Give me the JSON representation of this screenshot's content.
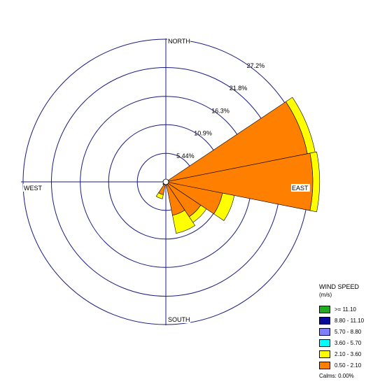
{
  "chart_data": {
    "type": "windrose",
    "directions": [
      {
        "label": "NORTH",
        "angle": 0
      },
      {
        "label": "EAST",
        "angle": 90
      },
      {
        "label": "SOUTH",
        "angle": 180
      },
      {
        "label": "WEST",
        "angle": 270
      }
    ],
    "rings": [
      "5.44%",
      "10.9%",
      "16.3%",
      "21.8%",
      "27.2%"
    ],
    "ring_values": [
      5.44,
      10.9,
      16.3,
      21.8,
      27.2
    ],
    "legend": {
      "title": "WIND SPEED",
      "unit": "(m/s)",
      "bins": [
        {
          "label": ">= 11.10",
          "color": "#22aa22"
        },
        {
          "label": "8.80 - 11.10",
          "color": "#0a0a99"
        },
        {
          "label": "5.70 - 8.80",
          "color": "#8080ff"
        },
        {
          "label": "3.60 - 5.70",
          "color": "#00ffff"
        },
        {
          "label": "2.10 - 3.60",
          "color": "#ffff00"
        },
        {
          "label": "0.50 - 2.10",
          "color": "#ff8000"
        }
      ],
      "calms": "Calms: 0.00%"
    },
    "sectors": [
      {
        "angle": 0,
        "values": [
          0.1,
          0
        ]
      },
      {
        "angle": 22.5,
        "values": [
          0.3,
          0
        ]
      },
      {
        "angle": 45,
        "values": [
          0.5,
          0
        ]
      },
      {
        "angle": 67.5,
        "values": [
          27.5,
          1.5
        ]
      },
      {
        "angle": 90,
        "values": [
          28.0,
          1.3
        ]
      },
      {
        "angle": 112.5,
        "values": [
          11.0,
          2.3
        ]
      },
      {
        "angle": 135,
        "values": [
          8.0,
          1.3
        ]
      },
      {
        "angle": 157.5,
        "values": [
          6.5,
          3.5
        ]
      },
      {
        "angle": 180,
        "values": [
          0.3,
          0
        ]
      },
      {
        "angle": 202.5,
        "values": [
          2.5,
          0.8
        ]
      },
      {
        "angle": 225,
        "values": [
          0.6,
          0.1
        ]
      },
      {
        "angle": 247.5,
        "values": [
          0.3,
          0
        ]
      },
      {
        "angle": 270,
        "values": [
          0.2,
          0
        ]
      },
      {
        "angle": 292.5,
        "values": [
          0.2,
          0
        ]
      },
      {
        "angle": 315,
        "values": [
          0.2,
          0
        ]
      },
      {
        "angle": 337.5,
        "values": [
          0.1,
          0
        ]
      }
    ]
  }
}
